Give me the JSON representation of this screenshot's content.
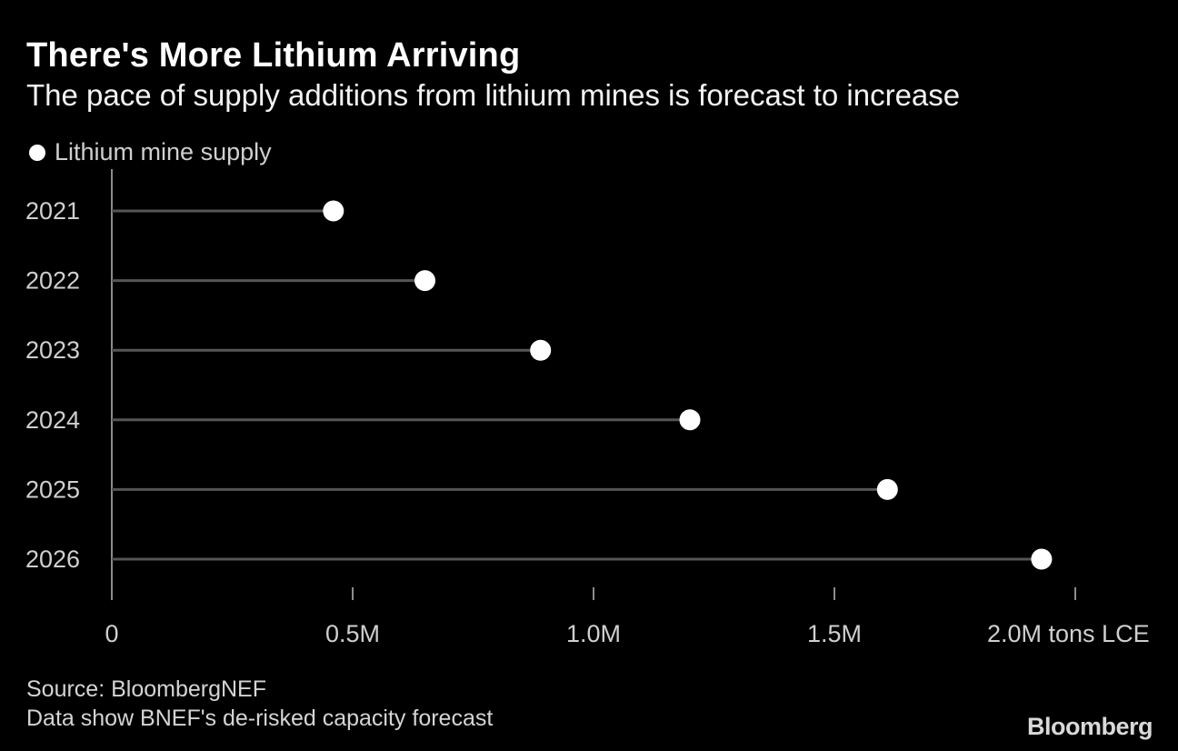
{
  "header": {
    "title": "There's More Lithium Arriving",
    "subtitle": "The pace of supply additions from lithium mines is forecast to increase"
  },
  "legend": {
    "label": "Lithium mine supply"
  },
  "footer": {
    "source": "Source: BloombergNEF",
    "note": "Data show BNEF's de-risked capacity forecast",
    "brand": "Bloomberg"
  },
  "colors": {
    "background": "#000000",
    "dot": "#ffffff",
    "stem": "#555555",
    "axis": "#8c8c8c",
    "text": "#cfcfcf"
  },
  "chart_data": {
    "type": "lollipop",
    "title": "There's More Lithium Arriving",
    "subtitle": "The pace of supply additions from lithium mines is forecast to increase",
    "categories": [
      "2021",
      "2022",
      "2023",
      "2024",
      "2025",
      "2026"
    ],
    "series": [
      {
        "name": "Lithium mine supply",
        "values": [
          0.46,
          0.65,
          0.89,
          1.2,
          1.61,
          1.93
        ]
      }
    ],
    "xlim": [
      0,
      2.0
    ],
    "xticks": [
      0,
      0.5,
      1.0,
      1.5,
      2.0
    ],
    "xtick_labels": [
      "0",
      "0.5M",
      "1.0M",
      "1.5M",
      "2.0M tons LCE"
    ],
    "value_unit": "M tons LCE",
    "grid": false,
    "legend_position": "top-left"
  }
}
